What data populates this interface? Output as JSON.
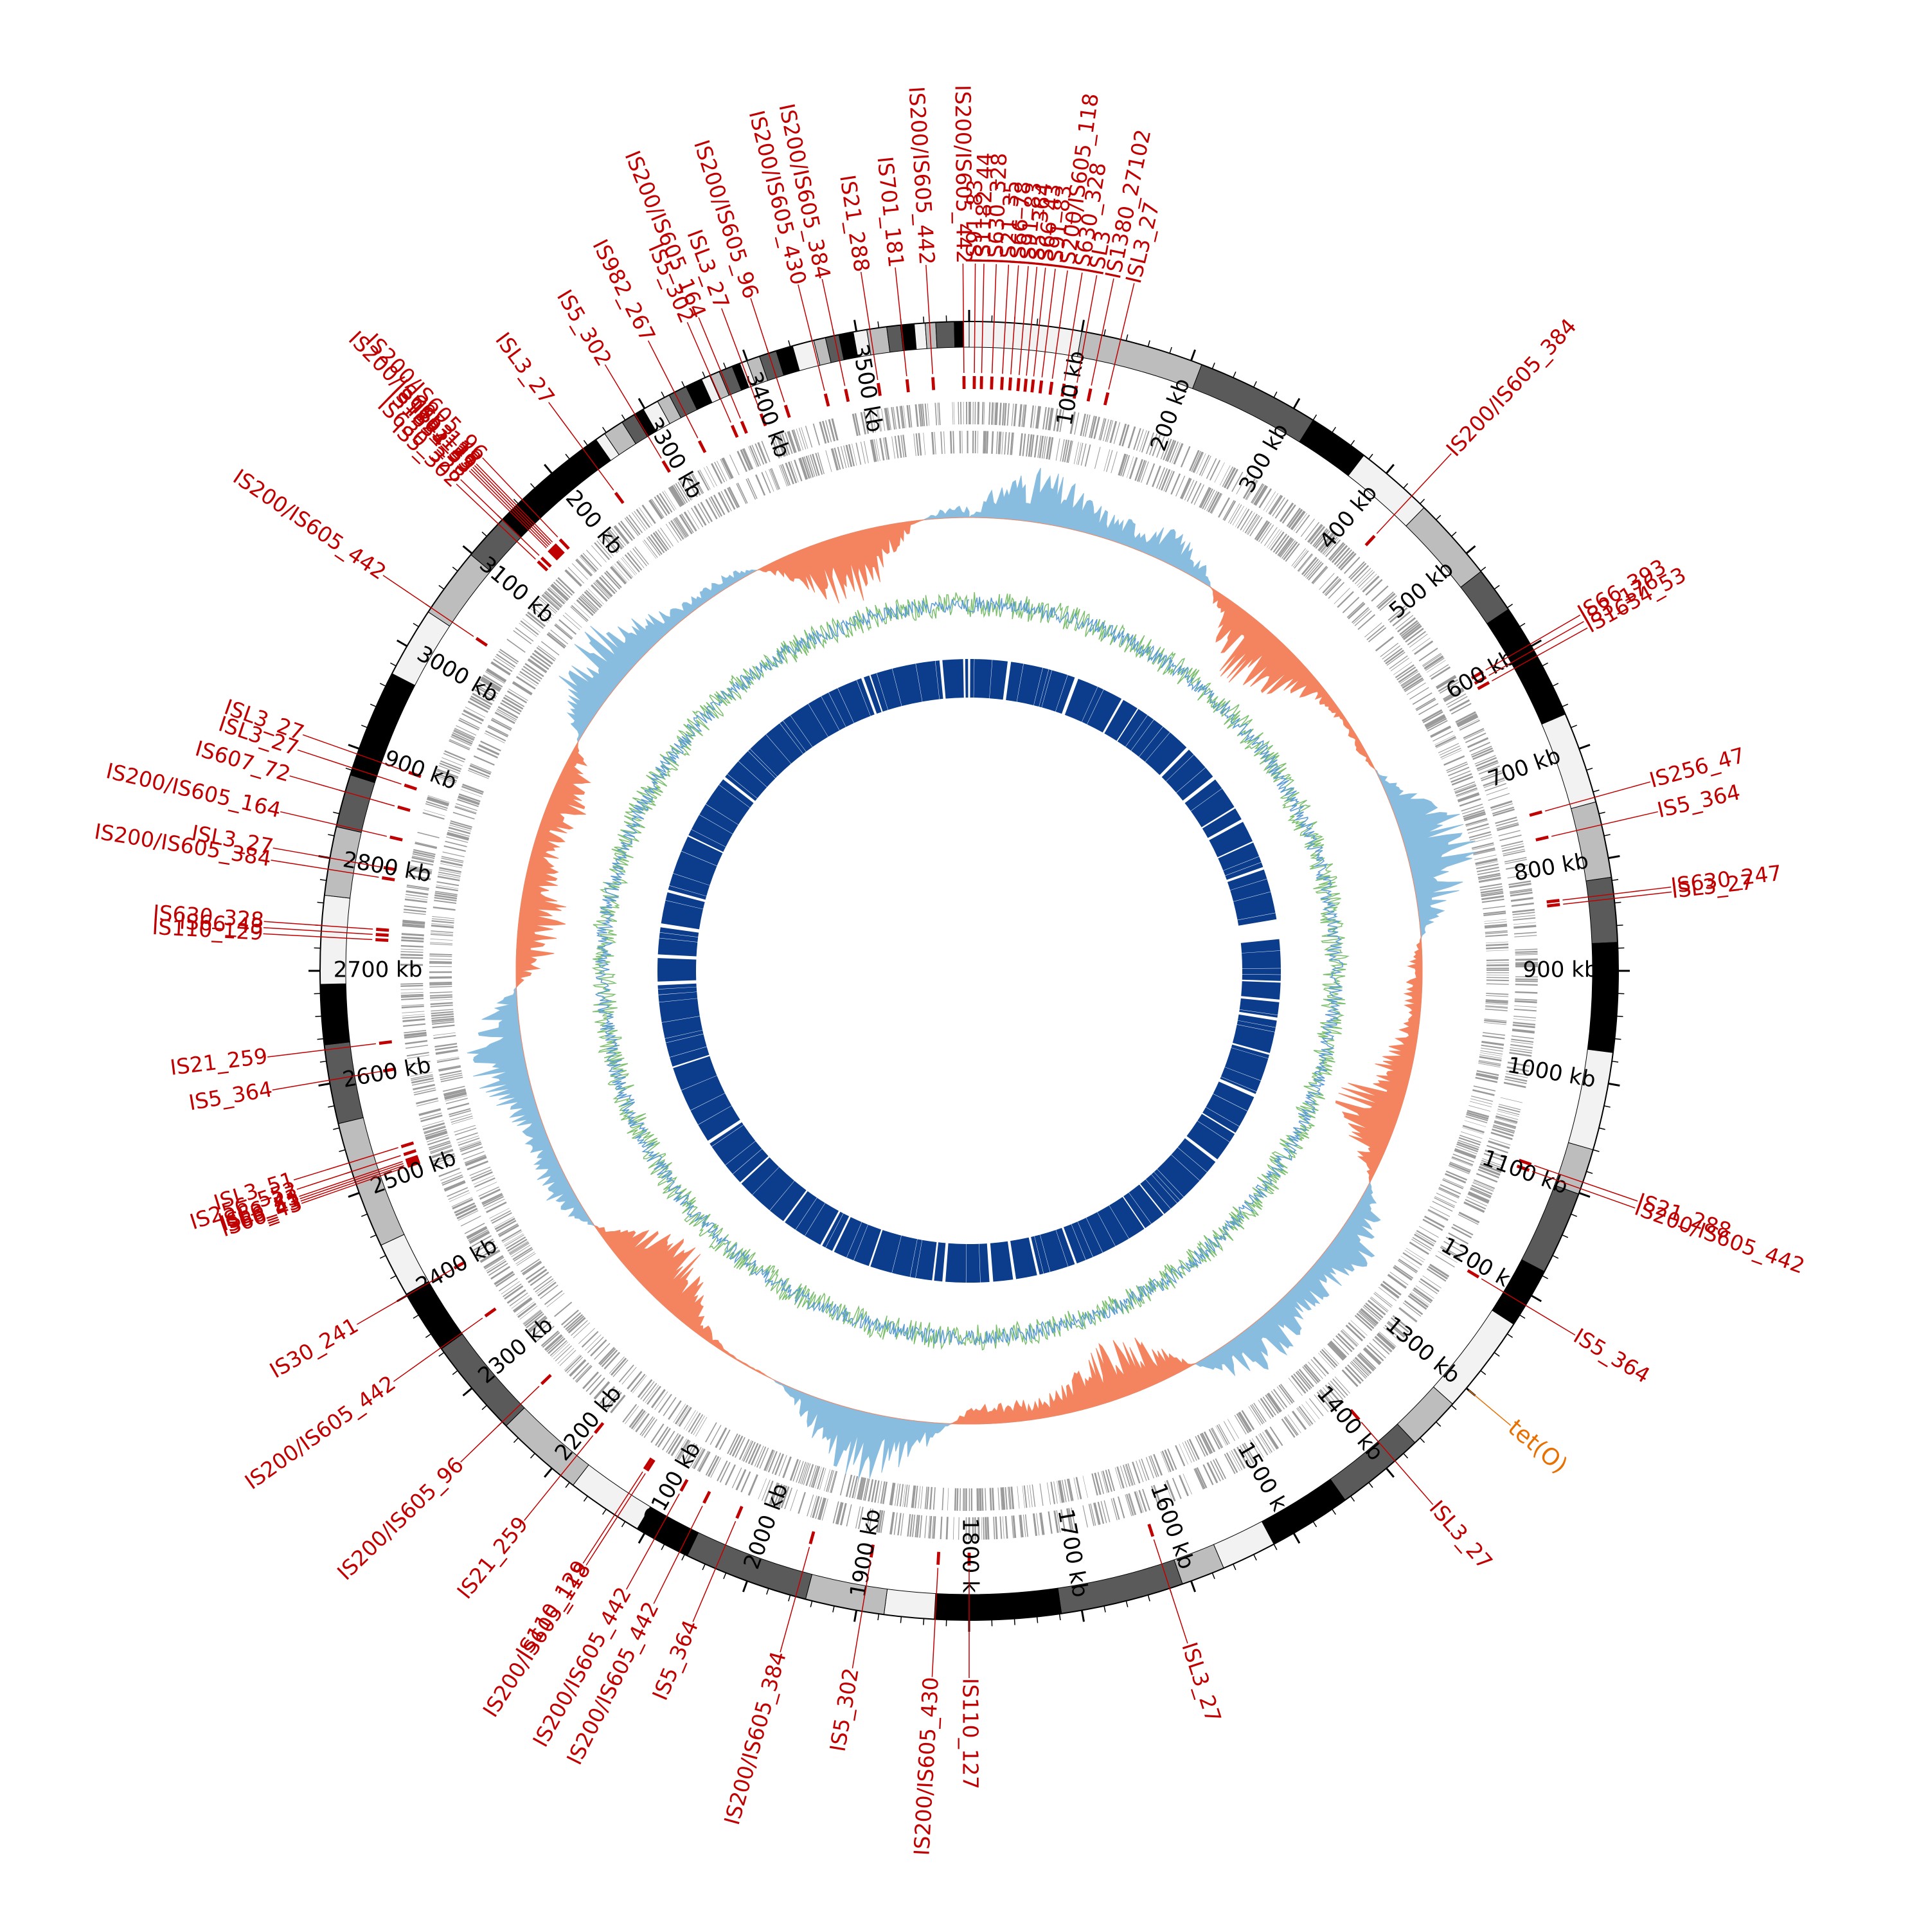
{
  "genome": {
    "total_kb": 3600,
    "tick_interval_kb": 100,
    "tick_unit": "kb",
    "first_labeled_tick_kb": 100
  },
  "colors": {
    "is_element": "#c00000",
    "resistance_gene": "#e87000",
    "band_palette": [
      "#f2f2f2",
      "#bdbdbd",
      "#5a5a5a",
      "#000000"
    ],
    "gc_skew_positive": "#f4845f",
    "gc_skew_negative": "#89bde0",
    "gc_content_line": "#7cbf6e",
    "gc_content_line2": "#5a9bd5",
    "orthologs": "#0b3d8c",
    "cds": "#9a9a9a"
  },
  "insertion_sequences": [
    {
      "name": "IS200/IS605_442",
      "kb": 3595
    },
    {
      "name": "IS91_83",
      "kb": 5
    },
    {
      "name": "IS1182_44",
      "kb": 12
    },
    {
      "name": "IS630_328",
      "kb": 22
    },
    {
      "name": "IS21_35",
      "kb": 32
    },
    {
      "name": "IS66_78",
      "kb": 40
    },
    {
      "name": "IS91_83",
      "kb": 48
    },
    {
      "name": "IS5_364",
      "kb": 55
    },
    {
      "name": "IS66_43",
      "kb": 62
    },
    {
      "name": "IS91_83",
      "kb": 70
    },
    {
      "name": "IS200/IS605_118",
      "kb": 80
    },
    {
      "name": "IS630_328",
      "kb": 92
    },
    {
      "name": "ISL3",
      "kb": 104
    },
    {
      "name": "IS1380_27102",
      "kb": 118
    },
    {
      "name": "ISL3_27",
      "kb": 135
    },
    {
      "name": "IS200/IS605_384",
      "kb": 430
    },
    {
      "name": "IS66_393",
      "kb": 598
    },
    {
      "name": "IS3_176",
      "kb": 604
    },
    {
      "name": "IS1634_53",
      "kb": 610
    },
    {
      "name": "IS256_47",
      "kb": 745
    },
    {
      "name": "IS5_364",
      "kb": 770
    },
    {
      "name": "IS630_247",
      "kb": 832
    },
    {
      "name": "ISL3_27",
      "kb": 836
    },
    {
      "name": "IS21_288",
      "kb": 1090
    },
    {
      "name": "IS200/IS605_442",
      "kb": 1096
    },
    {
      "name": "IS5_364",
      "kb": 1210
    },
    {
      "name": "ISL3_27",
      "kb": 1390
    },
    {
      "name": "ISL3_27",
      "kb": 1620
    },
    {
      "name": "IS110_127",
      "kb": 1800
    },
    {
      "name": "IS200/IS605_430",
      "kb": 1830
    },
    {
      "name": "IS5_302",
      "kb": 1895
    },
    {
      "name": "IS200/IS605_384",
      "kb": 1955
    },
    {
      "name": "IS5_364",
      "kb": 2030
    },
    {
      "name": "IS200/IS605_442",
      "kb": 2065
    },
    {
      "name": "IS200/IS605_442",
      "kb": 2090
    },
    {
      "name": "IS200/IS605_118",
      "kb": 2128
    },
    {
      "name": "IS110_129",
      "kb": 2131
    },
    {
      "name": "IS21_259",
      "kb": 2190
    },
    {
      "name": "IS200/IS605_96",
      "kb": 2260
    },
    {
      "name": "IS200/IS605_442",
      "kb": 2345
    },
    {
      "name": "IS30_241",
      "kb": 2400
    },
    {
      "name": "IS66_43",
      "kb": 2508
    },
    {
      "name": "IS66_43",
      "kb": 2510
    },
    {
      "name": "ISL3_51",
      "kb": 2512
    },
    {
      "name": "IS66_43",
      "kb": 2514
    },
    {
      "name": "IS256_552",
      "kb": 2520
    },
    {
      "name": "ISL3_51",
      "kb": 2528
    },
    {
      "name": "IS5_364",
      "kb": 2603
    },
    {
      "name": "IS21_259",
      "kb": 2630
    },
    {
      "name": "IS110_129",
      "kb": 2730
    },
    {
      "name": "IS66_43",
      "kb": 2735
    },
    {
      "name": "IS630_328",
      "kb": 2740
    },
    {
      "name": "IS200/IS605_384",
      "kb": 2790
    },
    {
      "name": "ISL3_27",
      "kb": 2800
    },
    {
      "name": "IS200/IS605_164",
      "kb": 2830
    },
    {
      "name": "IS607_72",
      "kb": 2860
    },
    {
      "name": "ISL3_27",
      "kb": 2882
    },
    {
      "name": "ISL3_27",
      "kb": 2895
    },
    {
      "name": "IS200/IS605_442",
      "kb": 3040
    },
    {
      "name": "IS5_302",
      "kb": 3135
    },
    {
      "name": "IS630_328",
      "kb": 3140
    },
    {
      "name": "IS1634_53",
      "kb": 3150
    },
    {
      "name": "IS21_35",
      "kb": 3152
    },
    {
      "name": "IS110_129",
      "kb": 3154
    },
    {
      "name": "ISL3_27",
      "kb": 3156
    },
    {
      "name": "IS200/IS605_118",
      "kb": 3158
    },
    {
      "name": "IS200/IS605_96",
      "kb": 3165
    },
    {
      "name": "ISL3_27",
      "kb": 3235
    },
    {
      "name": "IS5_302",
      "kb": 3290
    },
    {
      "name": "IS982_267",
      "kb": 3330
    },
    {
      "name": "IS5_302",
      "kb": 3365
    },
    {
      "name": "IS200/IS605_164",
      "kb": 3375
    },
    {
      "name": "ISL3_27",
      "kb": 3395
    },
    {
      "name": "IS200/IS605_96",
      "kb": 3420
    },
    {
      "name": "IS200/IS605_430",
      "kb": 3460
    },
    {
      "name": "IS200/IS605_384",
      "kb": 3480
    },
    {
      "name": "IS21_288",
      "kb": 3512
    },
    {
      "name": "IS701_181",
      "kb": 3540
    },
    {
      "name": "IS200/IS605_442",
      "kb": 3565
    }
  ],
  "resistance_genes": [
    {
      "name": "tet(O)",
      "kb": 1300
    }
  ]
}
